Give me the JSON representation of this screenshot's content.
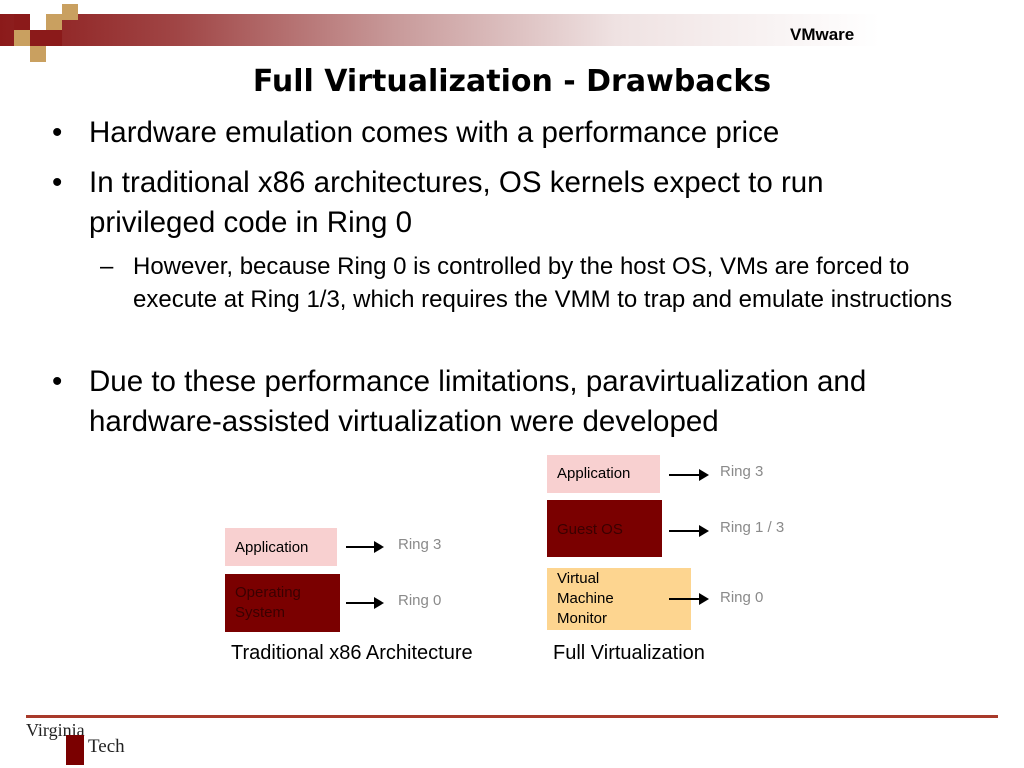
{
  "header": {
    "org": "VMware"
  },
  "title": "Full Virtualization - Drawbacks",
  "bullets": [
    "Hardware emulation comes with a performance price",
    "In traditional x86 architectures, OS kernels expect to run privileged code in Ring 0",
    "Due to these performance limitations, paravirtualization and hardware-assisted virtualization were developed"
  ],
  "sub_bullet": "However, because Ring 0 is controlled by the host OS, VMs are forced to execute at Ring 1/3, which requires the VMM to trap and emulate instructions",
  "bullet_char": "•",
  "sub_bullet_char": "–",
  "diagram_traditional": {
    "caption": "Traditional x86 Architecture",
    "app": "Application",
    "os": "Operating System",
    "ring_app": "Ring 3",
    "ring_os": "Ring 0"
  },
  "diagram_full": {
    "caption": "Full Virtualization",
    "app": "Application",
    "guest": "Guest OS",
    "vmm": "Virtual Machine Monitor",
    "ring_app": "Ring 3",
    "ring_guest": "Ring 1 / 3",
    "ring_vmm": "Ring 0"
  },
  "footer": {
    "logo_word1": "Virginia",
    "logo_word2": "Tech"
  },
  "colors": {
    "maroon": "#7a0000",
    "pink": "#f8d0d0",
    "tan": "#fdd590",
    "accent": "#a83a2a"
  }
}
